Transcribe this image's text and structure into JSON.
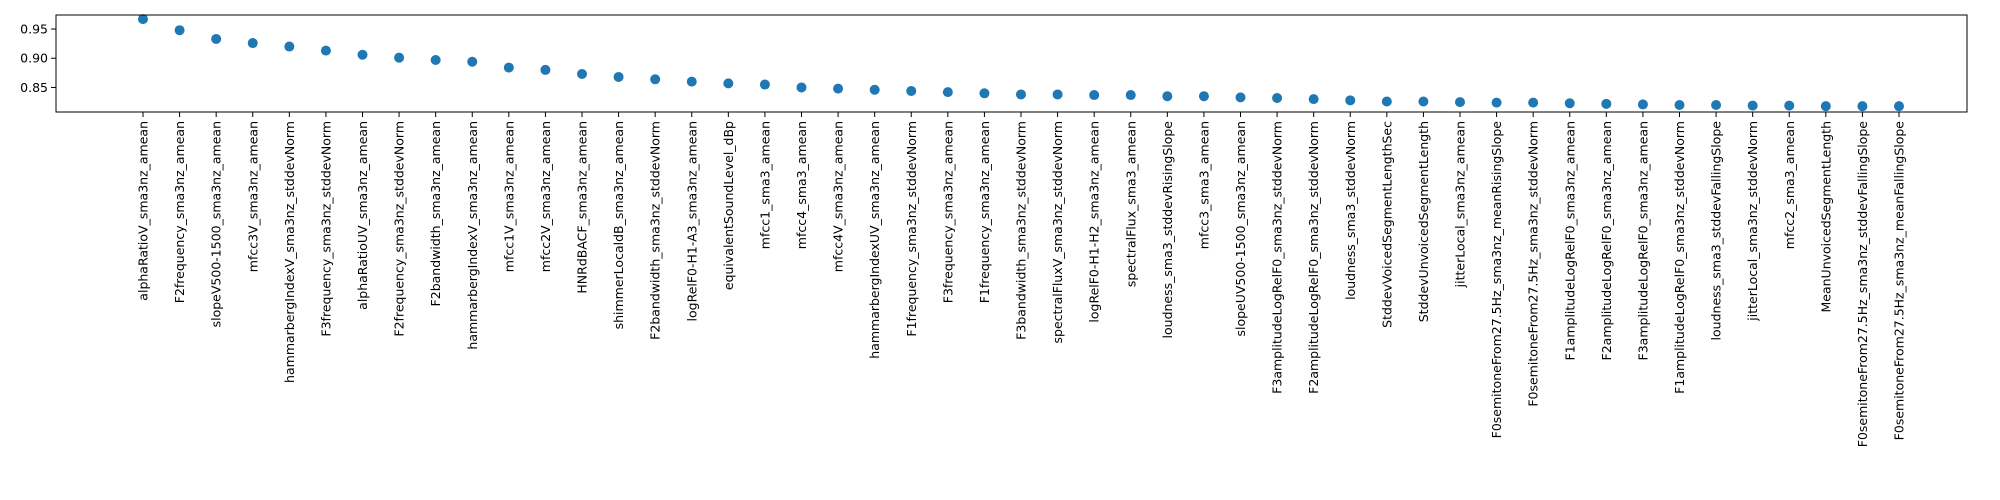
{
  "chart_data": {
    "type": "scatter",
    "title": "",
    "xlabel": "",
    "ylabel": "",
    "ylim": [
      0.808,
      0.974
    ],
    "yticks": [
      0.85,
      0.9,
      0.95
    ],
    "ytick_labels": [
      "0.85",
      "0.90",
      "0.95"
    ],
    "grid": false,
    "legend": "none",
    "marker_color": "#1f77b4",
    "categories": [
      "alphaRatioV_sma3nz_amean",
      "F2frequency_sma3nz_amean",
      "slopeV500-1500_sma3nz_amean",
      "mfcc3V_sma3nz_amean",
      "hammarbergIndexV_sma3nz_stddevNorm",
      "F3frequency_sma3nz_stddevNorm",
      "alphaRatioUV_sma3nz_amean",
      "F2frequency_sma3nz_stddevNorm",
      "F2bandwidth_sma3nz_amean",
      "hammarbergIndexV_sma3nz_amean",
      "mfcc1V_sma3nz_amean",
      "mfcc2V_sma3nz_amean",
      "HNRdBACF_sma3nz_amean",
      "shimmerLocaldB_sma3nz_amean",
      "F2bandwidth_sma3nz_stddevNorm",
      "logRelF0-H1-A3_sma3nz_amean",
      "equivalentSoundLevel_dBp",
      "mfcc1_sma3_amean",
      "mfcc4_sma3_amean",
      "mfcc4V_sma3nz_amean",
      "hammarbergIndexUV_sma3nz_amean",
      "F1frequency_sma3nz_stddevNorm",
      "F3frequency_sma3nz_amean",
      "F1frequency_sma3nz_amean",
      "F3bandwidth_sma3nz_stddevNorm",
      "spectralFluxV_sma3nz_stddevNorm",
      "logRelF0-H1-H2_sma3nz_amean",
      "spectralFlux_sma3_amean",
      "loudness_sma3_stddevRisingSlope",
      "mfcc3_sma3_amean",
      "slopeUV500-1500_sma3nz_amean",
      "F3amplitudeLogRelF0_sma3nz_stddevNorm",
      "F2amplitudeLogRelF0_sma3nz_stddevNorm",
      "loudness_sma3_stddevNorm",
      "StddevVoicedSegmentLengthSec",
      "StddevUnvoicedSegmentLength",
      "jitterLocal_sma3nz_amean",
      "F0semitoneFrom27.5Hz_sma3nz_meanRisingSlope",
      "F0semitoneFrom27.5Hz_sma3nz_stddevNorm",
      "F1amplitudeLogRelF0_sma3nz_amean",
      "F2amplitudeLogRelF0_sma3nz_amean",
      "F3amplitudeLogRelF0_sma3nz_amean",
      "F1amplitudeLogRelF0_sma3nz_stddevNorm",
      "loudness_sma3_stddevFallingSlope",
      "jitterLocal_sma3nz_stddevNorm",
      "mfcc2_sma3_amean",
      "MeanUnvoicedSegmentLength",
      "F0semitoneFrom27.5Hz_sma3nz_stddevFallingSlope",
      "F0semitoneFrom27.5Hz_sma3nz_meanFallingSlope"
    ],
    "values": [
      0.967,
      0.948,
      0.933,
      0.926,
      0.92,
      0.913,
      0.906,
      0.901,
      0.897,
      0.894,
      0.884,
      0.88,
      0.873,
      0.868,
      0.864,
      0.86,
      0.857,
      0.855,
      0.85,
      0.848,
      0.846,
      0.844,
      0.842,
      0.84,
      0.838,
      0.838,
      0.837,
      0.837,
      0.835,
      0.835,
      0.833,
      0.832,
      0.83,
      0.828,
      0.826,
      0.826,
      0.825,
      0.824,
      0.824,
      0.823,
      0.822,
      0.821,
      0.82,
      0.82,
      0.819,
      0.819,
      0.818,
      0.818,
      0.818
    ]
  }
}
